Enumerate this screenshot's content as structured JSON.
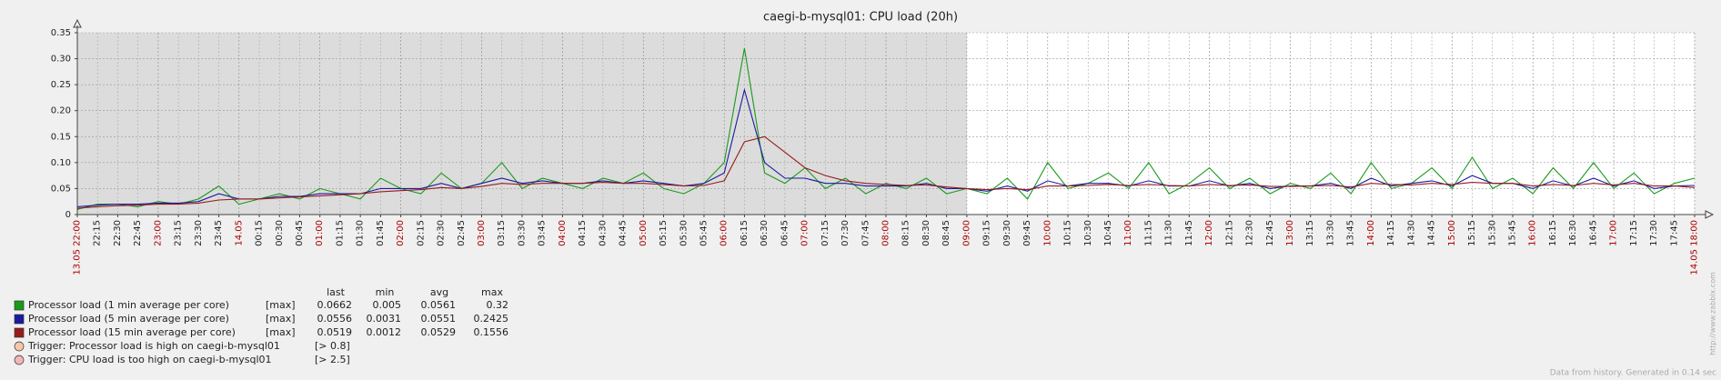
{
  "chart_data": {
    "type": "line",
    "title": "caegi-b-mysql01: CPU load (20h)",
    "categories": [
      "13.05 22:00",
      "22:15",
      "22:30",
      "22:45",
      "23:00",
      "23:15",
      "23:30",
      "23:45",
      "14.05",
      "00:15",
      "00:30",
      "00:45",
      "01:00",
      "01:15",
      "01:30",
      "01:45",
      "02:00",
      "02:15",
      "02:30",
      "02:45",
      "03:00",
      "03:15",
      "03:30",
      "03:45",
      "04:00",
      "04:15",
      "04:30",
      "04:45",
      "05:00",
      "05:15",
      "05:30",
      "05:45",
      "06:00",
      "06:15",
      "06:30",
      "06:45",
      "07:00",
      "07:15",
      "07:30",
      "07:45",
      "08:00",
      "08:15",
      "08:30",
      "08:45",
      "09:00",
      "09:15",
      "09:30",
      "09:45",
      "10:00",
      "10:15",
      "10:30",
      "10:45",
      "11:00",
      "11:15",
      "11:30",
      "11:45",
      "12:00",
      "12:15",
      "12:30",
      "12:45",
      "13:00",
      "13:15",
      "13:30",
      "13:45",
      "14:00",
      "14:15",
      "14:30",
      "14:45",
      "15:00",
      "15:15",
      "15:30",
      "15:45",
      "16:00",
      "16:15",
      "16:30",
      "16:45",
      "17:00",
      "17:15",
      "17:30",
      "17:45",
      "14.05 18:00"
    ],
    "ylim": [
      0,
      0.35
    ],
    "yticks": [
      0,
      0.05,
      {
        "value": 0.1,
        "label": "0.10"
      },
      0.15,
      {
        "value": 0.2,
        "label": "0.20"
      },
      0.25,
      {
        "value": 0.3,
        "label": "0.30"
      },
      0.35
    ],
    "grid": true,
    "label_color": "#222222",
    "hour_label_color": "#aa0000",
    "legend_columns": [
      "last",
      "min",
      "avg",
      "max"
    ],
    "series": [
      {
        "name": "Processor load (1 min average per core)",
        "color": "#1a9a1a",
        "func": "[max]",
        "last": 0.0662,
        "min": 0.005,
        "avg": 0.0561,
        "max": 0.32,
        "values": [
          0.01,
          0.02,
          0.02,
          0.015,
          0.025,
          0.02,
          0.03,
          0.055,
          0.02,
          0.03,
          0.04,
          0.03,
          0.05,
          0.04,
          0.03,
          0.07,
          0.05,
          0.04,
          0.08,
          0.05,
          0.06,
          0.1,
          0.05,
          0.07,
          0.06,
          0.05,
          0.07,
          0.06,
          0.08,
          0.05,
          0.04,
          0.06,
          0.1,
          0.32,
          0.08,
          0.06,
          0.09,
          0.05,
          0.07,
          0.04,
          0.06,
          0.05,
          0.07,
          0.04,
          0.05,
          0.04,
          0.07,
          0.03,
          0.1,
          0.05,
          0.06,
          0.08,
          0.05,
          0.1,
          0.04,
          0.06,
          0.09,
          0.05,
          0.07,
          0.04,
          0.06,
          0.05,
          0.08,
          0.04,
          0.1,
          0.05,
          0.06,
          0.09,
          0.05,
          0.11,
          0.05,
          0.07,
          0.04,
          0.09,
          0.05,
          0.1,
          0.05,
          0.08,
          0.04,
          0.06,
          0.07
        ]
      },
      {
        "name": "Processor load (5 min average per core)",
        "color": "#1a1aa0",
        "func": "[max]",
        "last": 0.0556,
        "min": 0.0031,
        "avg": 0.0551,
        "max": 0.2425,
        "values": [
          0.015,
          0.018,
          0.02,
          0.02,
          0.022,
          0.022,
          0.025,
          0.04,
          0.03,
          0.03,
          0.035,
          0.035,
          0.04,
          0.04,
          0.04,
          0.05,
          0.05,
          0.05,
          0.06,
          0.05,
          0.06,
          0.07,
          0.06,
          0.065,
          0.06,
          0.06,
          0.065,
          0.06,
          0.065,
          0.06,
          0.055,
          0.06,
          0.08,
          0.24,
          0.1,
          0.07,
          0.07,
          0.06,
          0.06,
          0.055,
          0.055,
          0.055,
          0.06,
          0.05,
          0.05,
          0.045,
          0.055,
          0.045,
          0.065,
          0.055,
          0.06,
          0.06,
          0.055,
          0.065,
          0.055,
          0.055,
          0.065,
          0.055,
          0.06,
          0.05,
          0.055,
          0.055,
          0.06,
          0.05,
          0.07,
          0.055,
          0.06,
          0.065,
          0.055,
          0.075,
          0.06,
          0.06,
          0.05,
          0.065,
          0.055,
          0.07,
          0.055,
          0.065,
          0.05,
          0.055,
          0.056
        ]
      },
      {
        "name": "Processor load (15 min average per core)",
        "color": "#961c1c",
        "func": "[max]",
        "last": 0.0519,
        "min": 0.0012,
        "avg": 0.0529,
        "max": 0.1556,
        "values": [
          0.012,
          0.015,
          0.017,
          0.018,
          0.02,
          0.02,
          0.022,
          0.028,
          0.03,
          0.03,
          0.032,
          0.034,
          0.036,
          0.038,
          0.04,
          0.044,
          0.046,
          0.048,
          0.052,
          0.05,
          0.054,
          0.06,
          0.058,
          0.06,
          0.06,
          0.06,
          0.062,
          0.06,
          0.06,
          0.058,
          0.055,
          0.056,
          0.065,
          0.14,
          0.15,
          0.12,
          0.09,
          0.075,
          0.065,
          0.06,
          0.058,
          0.056,
          0.057,
          0.053,
          0.05,
          0.048,
          0.05,
          0.048,
          0.055,
          0.055,
          0.056,
          0.058,
          0.056,
          0.058,
          0.056,
          0.055,
          0.058,
          0.056,
          0.057,
          0.054,
          0.054,
          0.055,
          0.056,
          0.053,
          0.06,
          0.058,
          0.057,
          0.06,
          0.058,
          0.062,
          0.06,
          0.06,
          0.055,
          0.058,
          0.056,
          0.06,
          0.057,
          0.06,
          0.055,
          0.055,
          0.052
        ]
      }
    ],
    "triggers": [
      {
        "name": "Trigger: Processor load is high on caegi-b-mysql01",
        "condition": "[> 0.8]",
        "color": "#f5c9a8"
      },
      {
        "name": "Trigger: CPU load is too high on caegi-b-mysql01",
        "condition": "[> 2.5]",
        "color": "#f5b5b5"
      }
    ],
    "watermark": "http://www.zabbix.com",
    "footer": "Data from history. Generated in 0.14 sec"
  }
}
